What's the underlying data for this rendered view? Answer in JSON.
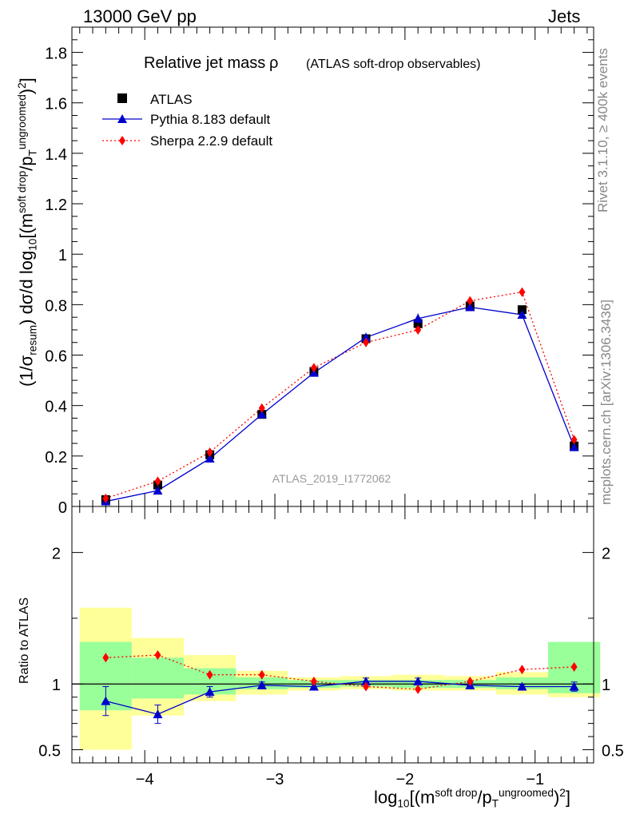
{
  "header": {
    "energy_label": "13000 GeV pp",
    "process_label": "Jets"
  },
  "side_labels": {
    "rivet": "Rivet 3.1.10, ≥ 400k events",
    "mcplots": "mcplots.cern.ch [arXiv:1306.3436]"
  },
  "plot_title": "Relative jet massρ (ATLAS soft-drop observables)",
  "analysis_id": "ATLAS_2019_I1772062",
  "axes": {
    "y_main_prefix": "(1/σ",
    "y_main_sub": "resum",
    "y_main_mid": ") dσ/d log",
    "y_main_sub2": "10",
    "y_main_m": "[(m",
    "y_main_sup_sd": "soft drop",
    "y_main_slash": "/p",
    "y_main_sub_t": "T",
    "y_main_sup_ug": "ungroomed",
    "y_main_end": ")",
    "y_main_sup_2": "2",
    "y_main_close": "]",
    "y_ratio": "Ratio to ATLAS",
    "x_log": "log",
    "x_sub10": "10",
    "x_m": "[(m",
    "x_sup_sd": "soft drop",
    "x_slash": "/p",
    "x_sub_t": "T",
    "x_sup_ug": "ungroomed",
    "x_end": ")",
    "x_sup_2": "2",
    "x_close": "]"
  },
  "chart_data": {
    "type": "line",
    "title": "Relative jet massρ (ATLAS soft-drop observables)",
    "xlim": [
      -4.56,
      -0.55
    ],
    "ylim_main": [
      0,
      1.9
    ],
    "ylim_ratio": [
      0.4,
      2.35
    ],
    "x_ticks": [
      -4,
      -3,
      -2,
      -1
    ],
    "x_tick_labels": [
      "−4",
      "−3",
      "−2",
      "−1"
    ],
    "y_ticks_main": [
      0,
      0.2,
      0.4,
      0.6,
      0.8,
      1,
      1.2,
      1.4,
      1.6,
      1.8
    ],
    "y_tick_labels_main": [
      "0",
      "0.2",
      "0.4",
      "0.6",
      "0.8",
      "1",
      "1.2",
      "1.4",
      "1.6",
      "1.8"
    ],
    "y_ticks_ratio": [
      0.5,
      1,
      2
    ],
    "y_tick_labels_ratio": [
      "0.5",
      "1",
      "2"
    ],
    "x_bins": [
      [
        -4.5,
        -4.1
      ],
      [
        -4.1,
        -3.7
      ],
      [
        -3.7,
        -3.3
      ],
      [
        -3.3,
        -2.9
      ],
      [
        -2.9,
        -2.5
      ],
      [
        -2.5,
        -2.1
      ],
      [
        -2.1,
        -1.7
      ],
      [
        -1.7,
        -1.3
      ],
      [
        -1.3,
        -0.9
      ],
      [
        -0.9,
        -0.5
      ]
    ],
    "x_centers": [
      -4.3,
      -3.9,
      -3.5,
      -3.1,
      -2.7,
      -2.3,
      -1.9,
      -1.5,
      -1.1,
      -0.7
    ],
    "ratio_band_green": [
      [
        0.8,
        1.32
      ],
      [
        0.89,
        1.2
      ],
      [
        0.92,
        1.12
      ],
      [
        0.96,
        1.05
      ],
      [
        0.97,
        1.03
      ],
      [
        0.98,
        1.03
      ],
      [
        0.97,
        1.03
      ],
      [
        0.97,
        1.03
      ],
      [
        0.96,
        1.05
      ],
      [
        0.93,
        1.32
      ]
    ],
    "ratio_band_yellow": [
      [
        0.5,
        1.58
      ],
      [
        0.76,
        1.35
      ],
      [
        0.87,
        1.22
      ],
      [
        0.92,
        1.1
      ],
      [
        0.95,
        1.05
      ],
      [
        0.96,
        1.06
      ],
      [
        0.95,
        1.07
      ],
      [
        0.95,
        1.06
      ],
      [
        0.92,
        1.09
      ],
      [
        0.9,
        1.18
      ]
    ],
    "series": [
      {
        "name": "ATLAS",
        "style": "square",
        "color": "#000000",
        "values": [
          0.027,
          0.085,
          0.205,
          0.365,
          0.535,
          0.665,
          0.725,
          0.795,
          0.78,
          0.24
        ]
      },
      {
        "name": "Pythia 8.183 default",
        "style": "triangle-solid",
        "color": "#0000cc",
        "values": [
          0.02,
          0.063,
          0.19,
          0.365,
          0.53,
          0.67,
          0.745,
          0.79,
          0.76,
          0.235
        ],
        "errors": [
          0.004,
          0.007,
          0.01,
          0.01,
          0.012,
          0.018,
          0.02,
          0.015,
          0.012,
          0.008
        ],
        "ratio": [
          0.87,
          0.77,
          0.94,
          0.99,
          0.98,
          1.02,
          1.02,
          0.99,
          0.98,
          0.98
        ],
        "ratio_err": [
          0.11,
          0.07,
          0.04,
          0.025,
          0.02,
          0.025,
          0.025,
          0.02,
          0.015,
          0.035
        ]
      },
      {
        "name": "Sherpa 2.2.9 default",
        "style": "diamond-dotted",
        "color": "#ff0000",
        "values": [
          0.032,
          0.1,
          0.215,
          0.39,
          0.55,
          0.65,
          0.7,
          0.815,
          0.85,
          0.265
        ],
        "ratio": [
          1.2,
          1.22,
          1.07,
          1.07,
          1.02,
          0.98,
          0.96,
          1.02,
          1.11,
          1.13
        ]
      }
    ]
  }
}
